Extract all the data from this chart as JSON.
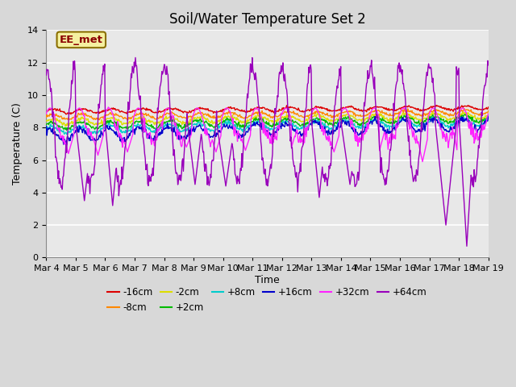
{
  "title": "Soil/Water Temperature Set 2",
  "xlabel": "Time",
  "ylabel": "Temperature (C)",
  "ylim": [
    0,
    14
  ],
  "xlim": [
    0,
    15
  ],
  "yticks": [
    0,
    2,
    4,
    6,
    8,
    10,
    12,
    14
  ],
  "xtick_labels": [
    "Mar 4",
    "Mar 5",
    "Mar 6",
    "Mar 7",
    "Mar 8",
    "Mar 9",
    "Mar 10",
    "Mar 11",
    "Mar 12",
    "Mar 13",
    "Mar 14",
    "Mar 15",
    "Mar 16",
    "Mar 17",
    "Mar 18",
    "Mar 19"
  ],
  "annotation_text": "EE_met",
  "annotation_box_color": "#f5f0a0",
  "annotation_text_color": "#8b0000",
  "annotation_edge_color": "#8b7000",
  "outer_bg_color": "#d8d8d8",
  "plot_bg_color": "#e8e8e8",
  "grid_color": "#ffffff",
  "series": [
    {
      "label": "-16cm",
      "color": "#dd0000",
      "base": 9.0,
      "amp": 0.12,
      "trend": 0.015
    },
    {
      "label": "-8cm",
      "color": "#ff8800",
      "base": 8.65,
      "amp": 0.15,
      "trend": 0.02
    },
    {
      "label": "-2cm",
      "color": "#dddd00",
      "base": 8.35,
      "amp": 0.18,
      "trend": 0.025
    },
    {
      "label": "+2cm",
      "color": "#00bb00",
      "base": 8.1,
      "amp": 0.2,
      "trend": 0.03
    },
    {
      "label": "+8cm",
      "color": "#00cccc",
      "base": 7.85,
      "amp": 0.22,
      "trend": 0.035
    },
    {
      "label": "+16cm",
      "color": "#0000cc",
      "base": 7.5,
      "amp": 0.35,
      "trend": 0.05
    },
    {
      "label": "+32cm",
      "color": "#ff22ff",
      "base": 8.0,
      "amp": 1.2,
      "trend": 0.06
    },
    {
      "label": "+64cm",
      "color": "#9900bb",
      "base": 8.2,
      "amp": 3.5,
      "trend": 0.0
    }
  ],
  "n_points": 720,
  "title_fontsize": 12,
  "label_fontsize": 9,
  "tick_fontsize": 8,
  "legend_fontsize": 8.5
}
